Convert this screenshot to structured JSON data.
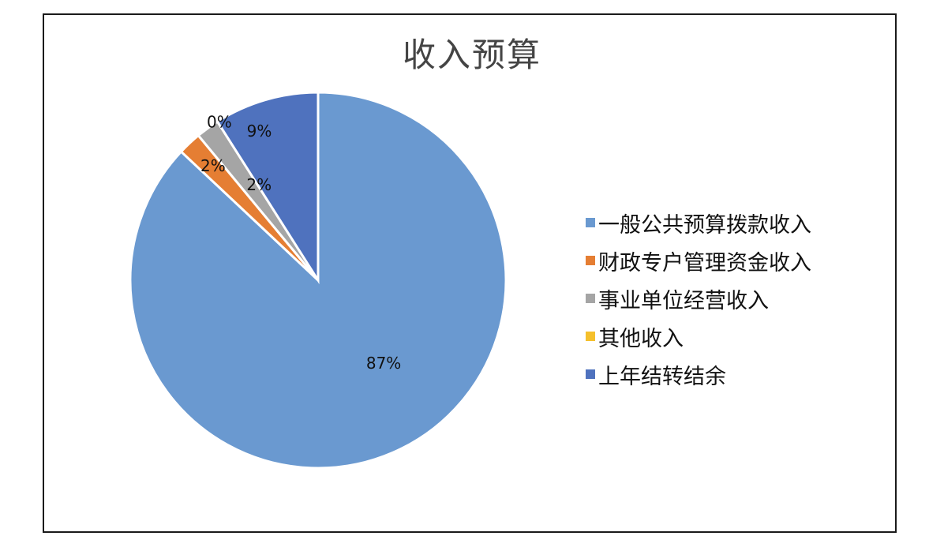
{
  "chart_data": {
    "type": "pie",
    "title": "收入预算",
    "categories": [
      "一般公共预算拨款收入",
      "财政专户管理资金收入",
      "事业单位经营收入",
      "其他收入",
      "上年结转结余"
    ],
    "values": [
      87,
      2,
      2,
      0,
      9
    ],
    "labels": [
      "87%",
      "2%",
      "2%",
      "0%",
      "9%"
    ],
    "colors": [
      "#6a99d0",
      "#e57e33",
      "#a5a5a5",
      "#f5c02c",
      "#4f72be"
    ],
    "legend_position": "right"
  }
}
